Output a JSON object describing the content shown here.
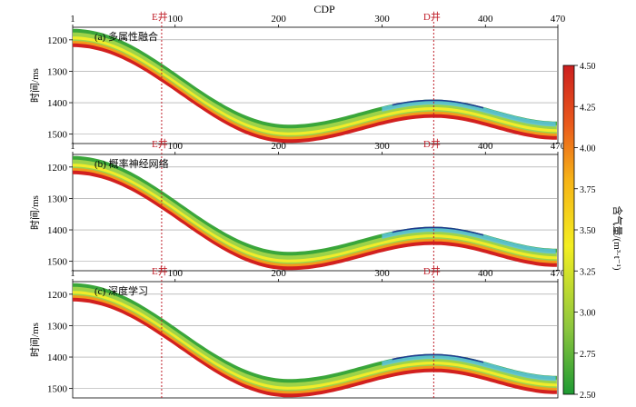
{
  "header": {
    "cdp_label": "CDP"
  },
  "x_axis": {
    "range": [
      1,
      470
    ],
    "ticks": [
      {
        "value": 1,
        "label": "1"
      },
      {
        "value": 100,
        "label": "100"
      },
      {
        "value": 200,
        "label": "200"
      },
      {
        "value": 300,
        "label": "300"
      },
      {
        "value": 400,
        "label": "400"
      },
      {
        "value": 470,
        "label": "470"
      }
    ]
  },
  "y_axis": {
    "label": "时间/ms",
    "range_ms": [
      1160,
      1530
    ],
    "ticks": [
      1200,
      1300,
      1400,
      1500
    ]
  },
  "wells": [
    {
      "label": "E井",
      "cdp": 87
    },
    {
      "label": "D井",
      "cdp": 350
    }
  ],
  "panels": [
    {
      "id": "a",
      "title": "(a) 多属性融合",
      "show_x_ticks": false
    },
    {
      "id": "b",
      "title": "(b) 概率神经网络",
      "show_x_ticks": true
    },
    {
      "id": "c",
      "title": "(c) 深度学习",
      "show_x_ticks": true
    }
  ],
  "colorbar": {
    "label": "含气量/(m³·t⁻¹)",
    "min": 2.5,
    "max": 4.5,
    "ticks": [
      "4.50",
      "4.25",
      "4.00",
      "3.75",
      "3.50",
      "3.25",
      "3.00",
      "2.75",
      "2.50"
    ],
    "colors": [
      "#1e9a33",
      "#8cc63e",
      "#f3ee22",
      "#f6b417",
      "#ea5a1c",
      "#cc1f1f"
    ]
  },
  "volume_colors": {
    "green": "#3aa63a",
    "light_green": "#9dd34a",
    "yellow": "#f1ec2a",
    "orange": "#f39a1c",
    "red": "#d2201f",
    "cyan": "#5fc3e0",
    "navy": "#1e3b8f"
  },
  "accent": {
    "well_line": "#c0202a"
  }
}
